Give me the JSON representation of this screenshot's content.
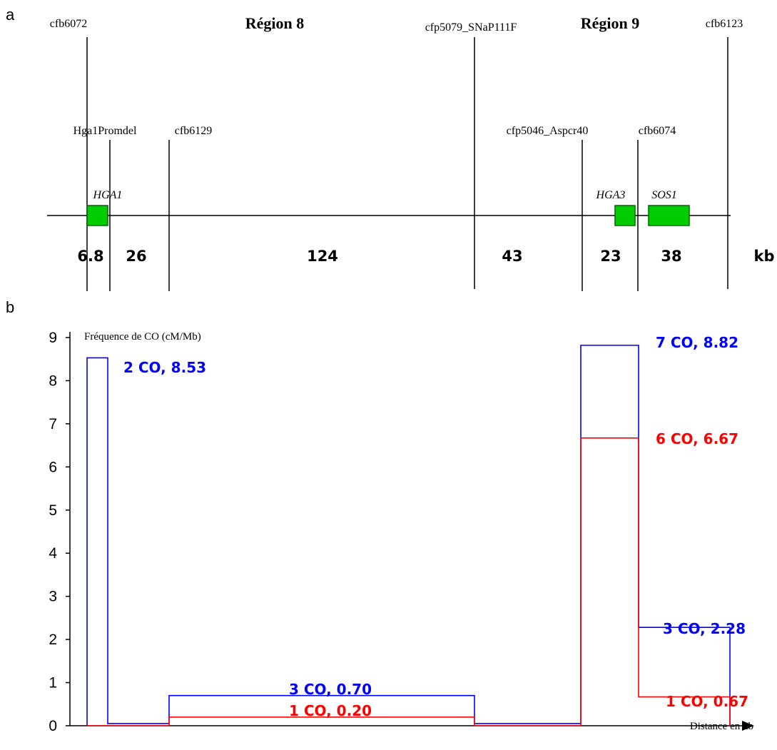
{
  "panel_a": {
    "panel_label": "a",
    "regions": [
      "Région 8",
      "Région 9"
    ],
    "markers_top": [
      "cfb6072",
      "cfp5079_SNaP111F",
      "cfb6123"
    ],
    "markers_mid": [
      "Hga1Promdel",
      "cfb6129",
      "cfp5046_Aspcr40",
      "cfb6074"
    ],
    "genes": [
      "HGA1",
      "HGA3",
      "SOS1"
    ],
    "interval_sizes_kb": [
      "6.8",
      "26",
      "124",
      "43",
      "23",
      "38"
    ],
    "unit": "kb",
    "colors": {
      "gene_fill": "#00cc00",
      "gene_stroke": "#006600"
    }
  },
  "panel_b": {
    "panel_label": "b",
    "ylabel": "Fréquence de CO (cM/Mb)",
    "xlabel": "Distance en kb"
  },
  "chart_data": {
    "type": "line",
    "title": "",
    "xlabel": "Distance en kb",
    "ylabel": "Fréquence de CO (cM/Mb)",
    "ylim": [
      0,
      9
    ],
    "yticks": [
      "0",
      "1",
      "2",
      "3",
      "4",
      "5",
      "6",
      "7",
      "8",
      "9"
    ],
    "x_interval_sizes_kb": [
      6.8,
      26,
      124,
      43,
      23,
      38
    ],
    "series": [
      {
        "color": "#0000ff",
        "values": [
          8.53,
          0.05,
          0.7,
          0.05,
          8.82,
          2.28
        ],
        "labels": [
          "2 CO, 8.53",
          "",
          "3 CO, 0.70",
          "",
          "7 CO, 8.82",
          "3 CO, 2.28"
        ]
      },
      {
        "color": "#ff0000",
        "values": [
          0.0,
          0.0,
          0.2,
          0.0,
          6.67,
          0.67
        ],
        "labels": [
          "",
          "",
          "1 CO, 0.20",
          "",
          "6 CO, 6.67",
          "1 CO, 0.67"
        ]
      }
    ]
  }
}
